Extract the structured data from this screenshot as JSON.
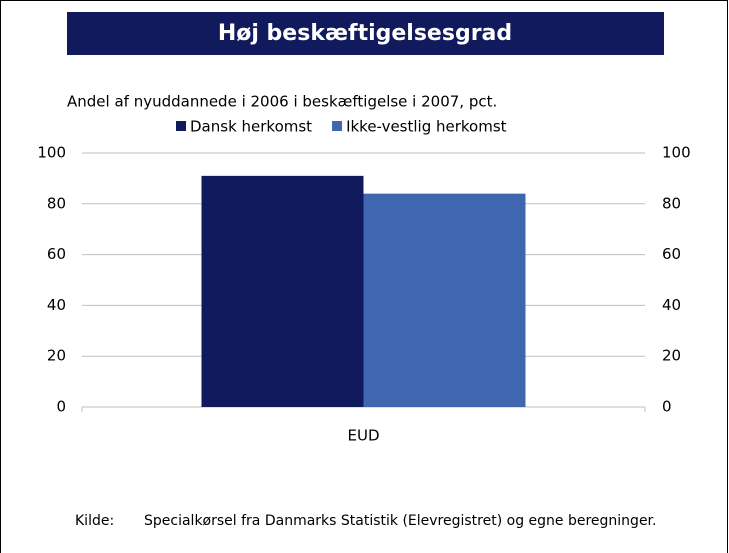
{
  "chart_data": {
    "type": "bar",
    "title": "Høj beskæftigelsesgrad",
    "subtitle": "Andel af nyuddannede i 2006 i beskæftigelse i 2007, pct.",
    "categories": [
      "EUD"
    ],
    "series": [
      {
        "name": "Dansk herkomst",
        "color": "#111a5c",
        "values": [
          91
        ]
      },
      {
        "name": "Ikke-vestlig herkomst",
        "color": "#4066b0",
        "values": [
          84
        ]
      }
    ],
    "ylim": [
      0,
      100
    ],
    "yticks": [
      0,
      20,
      40,
      60,
      80,
      100
    ],
    "y2lim": [
      0,
      100
    ],
    "y2ticks": [
      0,
      20,
      40,
      60,
      80,
      100
    ],
    "grid": true,
    "legend": "top",
    "source_label": "Kilde:",
    "source": "Specialkørsel fra Danmarks Statistik (Elevregistret) og egne beregninger."
  }
}
